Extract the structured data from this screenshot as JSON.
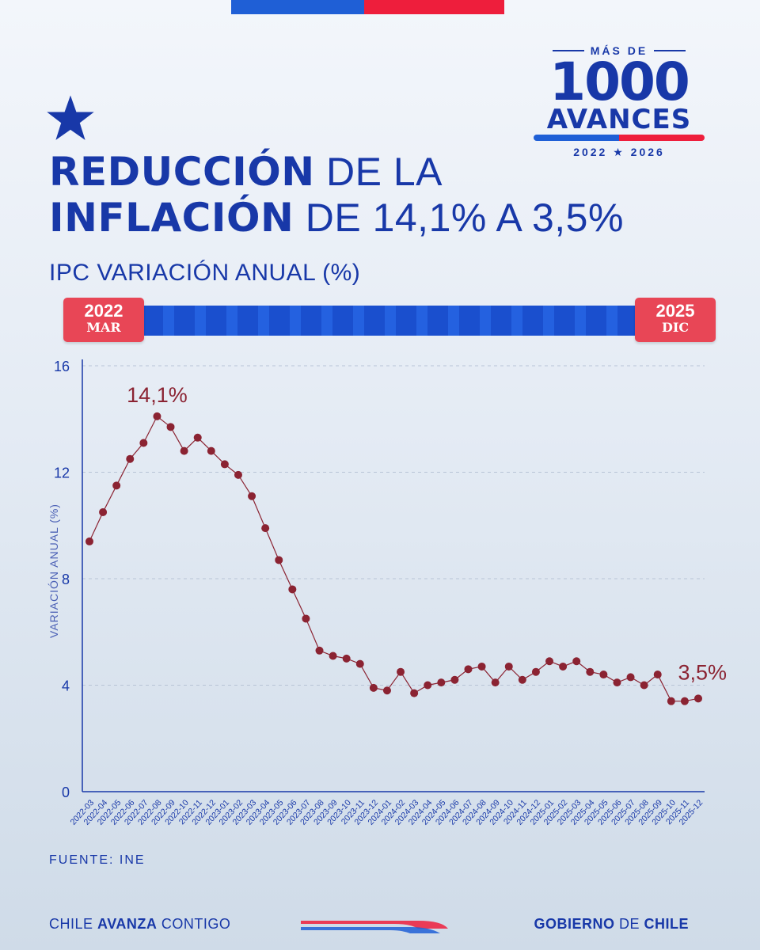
{
  "header": {
    "title_bold_1": "REDUCCIÓN",
    "title_light_1": "DE LA",
    "title_bold_2": "INFLACIÓN",
    "title_light_2": "DE 14,1% A 3,5%",
    "subtitle": "IPC VARIACIÓN ANUAL (%)"
  },
  "logo": {
    "top": "MÁS DE",
    "number": "1000",
    "word": "AVANCES",
    "years": "2022 ★ 2026"
  },
  "timeline": {
    "start_year": "2022",
    "start_month": "MAR",
    "end_year": "2025",
    "end_month": "DIC"
  },
  "colors": {
    "primary": "#1838a8",
    "accent_red": "#e84656",
    "series": "#8b2332",
    "flag_blue": "#1f5fd6",
    "flag_red": "#ee1e3c"
  },
  "chart_data": {
    "type": "line",
    "title": "IPC VARIACIÓN ANUAL (%)",
    "ylabel": "VARIACIÓN ANUAL (%)",
    "xlabel": "",
    "ylim": [
      0,
      16
    ],
    "yticks": [
      0,
      4,
      8,
      12,
      16
    ],
    "grid": "horizontal dashed",
    "categories": [
      "2022-03",
      "2022-04",
      "2022-05",
      "2022-06",
      "2022-07",
      "2022-08",
      "2022-09",
      "2022-10",
      "2022-11",
      "2022-12",
      "2023-01",
      "2023-02",
      "2023-03",
      "2023-04",
      "2023-05",
      "2023-06",
      "2023-07",
      "2023-08",
      "2023-09",
      "2023-10",
      "2023-11",
      "2023-12",
      "2024-01",
      "2024-02",
      "2024-03",
      "2024-04",
      "2024-05",
      "2024-06",
      "2024-07",
      "2024-08",
      "2024-09",
      "2024-10",
      "2024-11",
      "2024-12",
      "2025-01",
      "2025-02",
      "2025-03",
      "2025-04",
      "2025-05",
      "2025-06",
      "2025-07",
      "2025-08",
      "2025-09",
      "2025-10",
      "2025-11",
      "2025-12"
    ],
    "series": [
      {
        "name": "IPC variación anual",
        "values": [
          9.4,
          10.5,
          11.5,
          12.5,
          13.1,
          14.1,
          13.7,
          12.8,
          13.3,
          12.8,
          12.3,
          11.9,
          11.1,
          9.9,
          8.7,
          7.6,
          6.5,
          5.3,
          5.1,
          5.0,
          4.8,
          3.9,
          3.8,
          4.5,
          3.7,
          4.0,
          4.1,
          4.2,
          4.6,
          4.7,
          4.1,
          4.7,
          4.2,
          4.5,
          4.9,
          4.7,
          4.9,
          4.5,
          4.4,
          4.1,
          4.3,
          4.0,
          4.4,
          3.4,
          3.4,
          3.5
        ]
      }
    ],
    "annotations": [
      {
        "label": "14,1%",
        "category": "2022-08",
        "value": 14.1
      },
      {
        "label": "3,5%",
        "category": "2025-12",
        "value": 3.5
      }
    ]
  },
  "source": "FUENTE: INE",
  "footer": {
    "left_1": "CHILE ",
    "left_bold": "AVANZA",
    "left_2": " CONTIGO",
    "right_1": "GOBIERNO ",
    "right_light": "DE",
    "right_2": " CHILE"
  }
}
